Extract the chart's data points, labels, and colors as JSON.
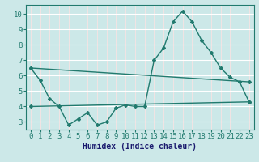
{
  "line1_x": [
    0,
    1,
    2,
    3,
    4,
    5,
    6,
    7,
    8,
    9,
    10,
    11,
    12,
    13,
    14,
    15,
    16,
    17,
    18,
    19,
    20,
    21,
    22,
    23
  ],
  "line1_y": [
    6.5,
    5.7,
    4.5,
    4.0,
    2.8,
    3.2,
    3.6,
    2.8,
    3.0,
    3.9,
    4.1,
    4.0,
    4.0,
    7.0,
    7.8,
    9.5,
    10.2,
    9.5,
    8.3,
    7.5,
    6.5,
    5.9,
    5.6,
    4.3
  ],
  "line2_x": [
    0,
    23
  ],
  "line2_y": [
    6.5,
    5.6
  ],
  "line3_x": [
    0,
    23
  ],
  "line3_y": [
    4.0,
    4.3
  ],
  "line_color": "#217a6e",
  "bg_color": "#cce8e8",
  "xlim": [
    -0.5,
    23.5
  ],
  "ylim": [
    2.5,
    10.6
  ],
  "yticks": [
    3,
    4,
    5,
    6,
    7,
    8,
    9,
    10
  ],
  "xticks": [
    0,
    1,
    2,
    3,
    4,
    5,
    6,
    7,
    8,
    9,
    10,
    11,
    12,
    13,
    14,
    15,
    16,
    17,
    18,
    19,
    20,
    21,
    22,
    23
  ],
  "xlabel": "Humidex (Indice chaleur)",
  "xlabel_fontsize": 7,
  "tick_fontsize": 6.5
}
